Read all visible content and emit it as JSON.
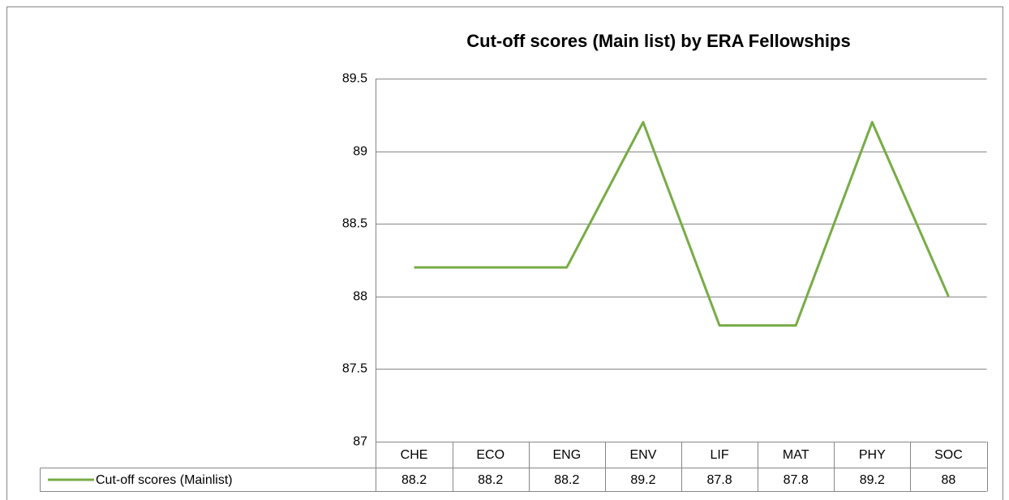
{
  "chart_data": {
    "type": "line",
    "title": "Cut-off scores (Main list) by ERA Fellowships",
    "categories": [
      "CHE",
      "ECO",
      "ENG",
      "ENV",
      "LIF",
      "MAT",
      "PHY",
      "SOC"
    ],
    "series": [
      {
        "name": "Cut-off scores (Mainlist)",
        "color": "#77ac45",
        "values": [
          88.2,
          88.2,
          88.2,
          89.2,
          87.8,
          87.8,
          89.2,
          88
        ]
      }
    ],
    "ylim": [
      87,
      89.5
    ],
    "yticks": [
      87,
      87.5,
      88,
      88.5,
      89,
      89.5
    ],
    "grid": true
  }
}
